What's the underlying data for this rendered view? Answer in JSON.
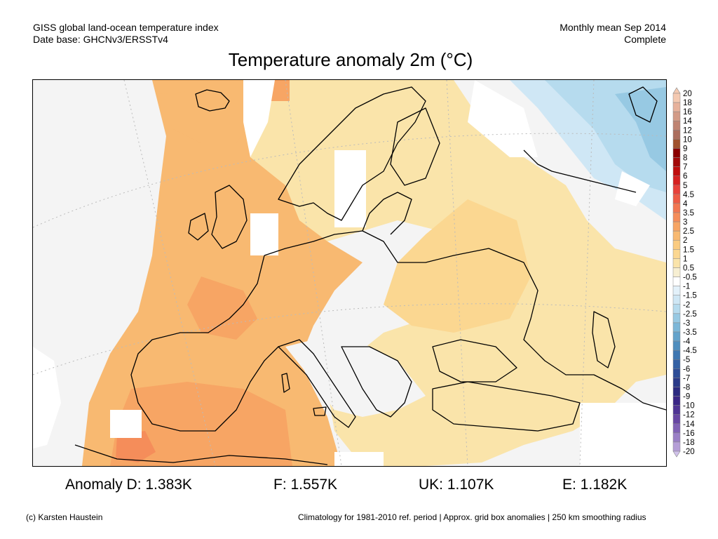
{
  "header": {
    "source_line1": "GISS global land-ocean temperature index",
    "source_line2": "Date base: GHCNv3/ERSSTv4",
    "period_line1": "Monthly mean Sep 2014",
    "period_line2": "Complete"
  },
  "title": "Temperature anomaly 2m (°C)",
  "legend": {
    "ticks": [
      "20",
      "18",
      "16",
      "14",
      "12",
      "10",
      "9",
      "8",
      "7",
      "6",
      "5",
      "4.5",
      "4",
      "3.5",
      "3",
      "2.5",
      "2",
      "1.5",
      "1",
      "0.5",
      "-0.5",
      "-1",
      "-1.5",
      "-2",
      "-2.5",
      "-3",
      "-3.5",
      "-4",
      "-4.5",
      "-5",
      "-6",
      "-7",
      "-8",
      "-9",
      "-10",
      "-12",
      "-14",
      "-16",
      "-18",
      "-20"
    ],
    "colors": [
      "#f4c9b1",
      "#e7b29c",
      "#d39b87",
      "#bf8472",
      "#ab6e5e",
      "#a0522d",
      "#8b0000",
      "#a30a0a",
      "#c00d0d",
      "#d62020",
      "#e8413a",
      "#ee5b45",
      "#f27651",
      "#f58d5a",
      "#f7a564",
      "#f8b971",
      "#facb80",
      "#fbd791",
      "#fae4aa",
      "#f7efd2",
      "#ffffff",
      "#e3f1fa",
      "#cfe7f5",
      "#b6dbee",
      "#97c9e3",
      "#7cb7d8",
      "#63a3cb",
      "#4f8ebe",
      "#3f77b1",
      "#3461a4",
      "#2d4d97",
      "#2a3a89",
      "#2c2a80",
      "#3a2686",
      "#4f3494",
      "#6746a3",
      "#8061b5",
      "#9a7fc6",
      "#b59ed7",
      "#d0c1ea"
    ]
  },
  "anomalies": {
    "d": "Anomaly D: 1.383K",
    "f": "F: 1.557K",
    "uk": "UK: 1.107K",
    "e": "E: 1.182K"
  },
  "footer": {
    "credit": "(c) Karsten Haustein",
    "note": "Climatology for 1981-2010 ref. period | Approx. grid box anomalies | 250 km smoothing radius"
  }
}
